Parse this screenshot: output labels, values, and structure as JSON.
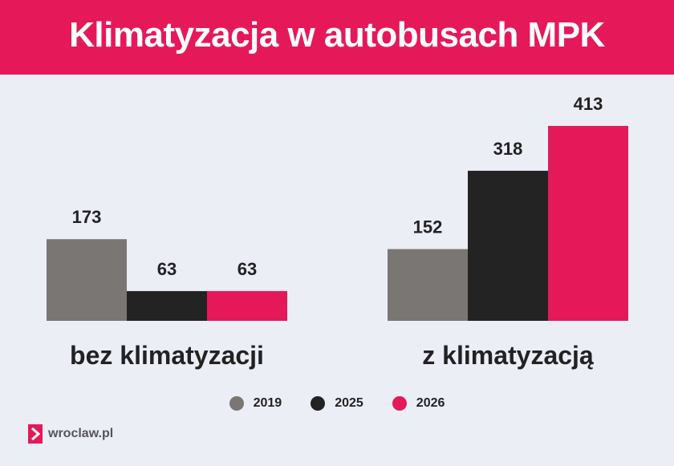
{
  "title": "Klimatyzacja w autobusach MPK",
  "colors": {
    "header_bg": "#e5195a",
    "background": "#eceef5",
    "2019": "#7a7674",
    "2025": "#232323",
    "2026": "#e5195a"
  },
  "chart_data": {
    "type": "bar",
    "categories": [
      "bez klimatyzacji",
      "z klimatyzacją"
    ],
    "series": [
      {
        "name": "2019",
        "values": [
          173,
          152
        ]
      },
      {
        "name": "2025",
        "values": [
          63,
          318
        ]
      },
      {
        "name": "2026",
        "values": [
          63,
          413
        ]
      }
    ],
    "ylim": [
      0,
      413
    ],
    "grid": false,
    "legend": "bottom"
  },
  "legend": [
    {
      "label": "2019",
      "color": "#7a7674"
    },
    {
      "label": "2025",
      "color": "#232323"
    },
    {
      "label": "2026",
      "color": "#e5195a"
    }
  ],
  "logo": {
    "text": "wroclaw.pl",
    "icon": "chevron-right-icon"
  }
}
